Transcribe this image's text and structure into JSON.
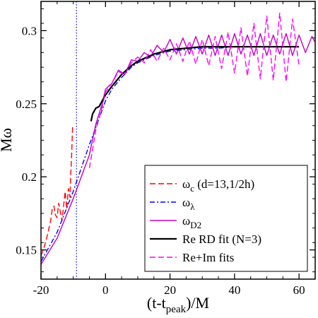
{
  "chart_data": {
    "type": "line",
    "xlabel": "(t-t_peak)/M",
    "ylabel": "Mω",
    "xlim": [
      -20,
      65
    ],
    "ylim": [
      0.13,
      0.32
    ],
    "xticks": [
      -20,
      0,
      20,
      40,
      60
    ],
    "yticks": [
      0.15,
      0.2,
      0.25,
      0.3
    ],
    "grid": false,
    "legend_position": "lower-right",
    "vlines": [
      {
        "x": -9,
        "color": "#0000ff",
        "style": "dotted"
      }
    ],
    "series": [
      {
        "name": "ω_c (d=13,1/2h)",
        "color": "#ff0000",
        "style": "dashed",
        "x": [
          -20,
          -19,
          -18,
          -17,
          -16.5,
          -16,
          -15.5,
          -15,
          -14.5,
          -14,
          -13.5,
          -13,
          -12.5,
          -12,
          -11.5,
          -11,
          -10.8,
          -10.5,
          -10.2
        ],
        "y": [
          0.146,
          0.152,
          0.16,
          0.17,
          0.178,
          0.18,
          0.174,
          0.172,
          0.182,
          0.176,
          0.17,
          0.18,
          0.19,
          0.178,
          0.192,
          0.186,
          0.2,
          0.215,
          0.234
        ]
      },
      {
        "name": "ω_λ",
        "color": "#0000ff",
        "style": "dashdot",
        "x": [
          -20,
          -15,
          -10,
          -5,
          -2,
          0,
          2,
          5,
          8,
          10,
          15,
          20,
          25,
          30,
          35,
          40,
          45,
          50,
          55,
          60
        ],
        "y": [
          0.142,
          0.162,
          0.19,
          0.222,
          0.24,
          0.252,
          0.26,
          0.268,
          0.275,
          0.278,
          0.283,
          0.286,
          0.287,
          0.288,
          0.288,
          0.289,
          0.289,
          0.289,
          0.289,
          0.289
        ]
      },
      {
        "name": "ω_D2",
        "color": "#c000c0",
        "style": "solid",
        "x": [
          -20,
          -15,
          -10,
          -5,
          -3,
          -1,
          0,
          2,
          4,
          6,
          8,
          10,
          12,
          14,
          16,
          18,
          20,
          22,
          24,
          26,
          28,
          30,
          32,
          34,
          36,
          38,
          40,
          42,
          44,
          46,
          48,
          50,
          52,
          54,
          56,
          58,
          60,
          62,
          64,
          65
        ],
        "y": [
          0.14,
          0.158,
          0.185,
          0.215,
          0.236,
          0.25,
          0.26,
          0.264,
          0.273,
          0.27,
          0.28,
          0.279,
          0.285,
          0.282,
          0.29,
          0.285,
          0.294,
          0.284,
          0.295,
          0.284,
          0.296,
          0.284,
          0.297,
          0.283,
          0.297,
          0.283,
          0.298,
          0.284,
          0.297,
          0.283,
          0.298,
          0.283,
          0.297,
          0.284,
          0.298,
          0.283,
          0.297,
          0.285,
          0.296,
          0.292
        ]
      },
      {
        "name": "Re RD fit (N=3)",
        "color": "#000000",
        "style": "solid",
        "x": [
          -4.5,
          -4,
          -3,
          -2,
          -1,
          0,
          2,
          5,
          8,
          10,
          15,
          20,
          25,
          30,
          35,
          40,
          45,
          50,
          55,
          60
        ],
        "y": [
          0.238,
          0.243,
          0.247,
          0.248,
          0.252,
          0.256,
          0.262,
          0.27,
          0.276,
          0.279,
          0.284,
          0.287,
          0.288,
          0.289,
          0.289,
          0.289,
          0.289,
          0.289,
          0.289,
          0.289
        ]
      },
      {
        "name": "Re+Im fits",
        "color": "#ff00ff",
        "style": "dashed",
        "x": [
          -5,
          -3,
          -1,
          0,
          2,
          4,
          6,
          8,
          10,
          12,
          14,
          16,
          18,
          20,
          22,
          24,
          26,
          28,
          30,
          32,
          34,
          36,
          38,
          40,
          42,
          44,
          46,
          48,
          50,
          52,
          54,
          56,
          58,
          60
        ],
        "y": [
          0.206,
          0.232,
          0.248,
          0.258,
          0.264,
          0.272,
          0.27,
          0.278,
          0.282,
          0.278,
          0.287,
          0.279,
          0.288,
          0.28,
          0.291,
          0.279,
          0.293,
          0.277,
          0.294,
          0.276,
          0.296,
          0.274,
          0.299,
          0.271,
          0.302,
          0.269,
          0.305,
          0.267,
          0.31,
          0.266,
          0.312,
          0.265,
          0.308,
          0.276
        ]
      }
    ]
  },
  "axes": {
    "xlabel_main": "(t-t",
    "xlabel_sub": "peak",
    "xlabel_tail": ")/M",
    "ylabel": "Mω"
  },
  "legend": {
    "items": [
      {
        "main": "ω",
        "sub": "c",
        "tail": " (d=13,1/2h)"
      },
      {
        "main": "ω",
        "sub": "λ",
        "tail": ""
      },
      {
        "main": "ω",
        "sub": "D2",
        "tail": ""
      },
      {
        "main": "Re RD fit (N=3)",
        "sub": "",
        "tail": ""
      },
      {
        "main": "Re+Im fits",
        "sub": "",
        "tail": ""
      }
    ]
  }
}
